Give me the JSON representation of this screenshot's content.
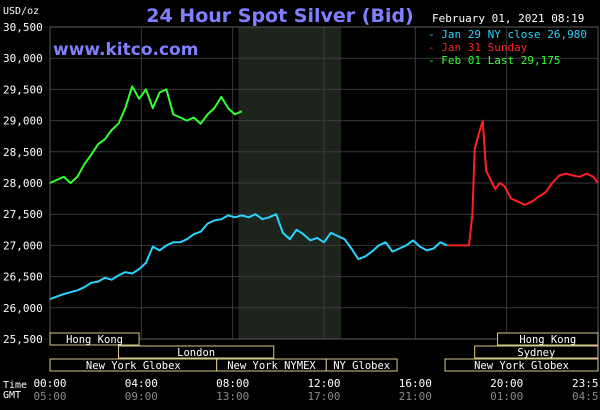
{
  "chart_data": {
    "type": "line",
    "title": "24 Hour Spot Silver (Bid)",
    "unit_label": "USD/oz",
    "watermark": "www.kitco.com",
    "timestamp": "February 01, 2021 08:19",
    "time_zone_label": "Time\nGMT",
    "ylim": [
      25.5,
      30.5
    ],
    "ytick_labels": [
      "25,500",
      "26,000",
      "26,500",
      "27,000",
      "27,500",
      "28,000",
      "28,500",
      "29,000",
      "29,500",
      "30,000",
      "30,500"
    ],
    "ytick_values": [
      25.5,
      26.0,
      26.5,
      27.0,
      27.5,
      28.0,
      28.5,
      29.0,
      29.5,
      30.0,
      30.5
    ],
    "xlim": [
      0,
      24
    ],
    "xticks": [
      {
        "x": 0,
        "top": "00:00",
        "bottom": "05:00"
      },
      {
        "x": 4,
        "top": "04:00",
        "bottom": "09:00"
      },
      {
        "x": 8,
        "top": "08:00",
        "bottom": "13:00"
      },
      {
        "x": 12,
        "top": "12:00",
        "bottom": "17:00"
      },
      {
        "x": 16,
        "top": "16:00",
        "bottom": "21:00"
      },
      {
        "x": 20,
        "top": "20:00",
        "bottom": "01:00"
      },
      {
        "x": 24,
        "top": "23:5",
        "bottom": "04:5"
      }
    ],
    "shaded_region": [
      8.25,
      12.75
    ],
    "legend": [
      {
        "label": "Jan 29 NY close 26,980",
        "color": "#2ad4ff"
      },
      {
        "label": "Jan 31 Sunday",
        "color": "#ff2020"
      },
      {
        "label": "Feb 01 Last 29,175",
        "color": "#33ff33"
      }
    ],
    "sessions": [
      {
        "name": "Hong Kong",
        "start": 0,
        "end": 3.9,
        "row": 0
      },
      {
        "name": "Hong Kong",
        "start": 19.6,
        "end": 24,
        "row": 0
      },
      {
        "name": "London",
        "start": 3,
        "end": 9.8,
        "row": 1
      },
      {
        "name": "Sydney",
        "start": 18.6,
        "end": 24,
        "row": 1
      },
      {
        "name": "New York Globex",
        "start": 0,
        "end": 7.3,
        "row": 2
      },
      {
        "name": "New York NYMEX",
        "start": 7.3,
        "end": 12.1,
        "row": 2
      },
      {
        "name": "NY Globex",
        "start": 12.1,
        "end": 15.2,
        "row": 2
      },
      {
        "name": "New York Globex",
        "start": 17.3,
        "end": 24,
        "row": 2
      }
    ],
    "series": [
      {
        "name": "Jan 29 NY close 26,980",
        "color": "#2ad4ff",
        "x": [
          0,
          0.3,
          0.6,
          0.9,
          1.2,
          1.5,
          1.8,
          2.1,
          2.4,
          2.7,
          3.0,
          3.3,
          3.6,
          3.9,
          4.2,
          4.5,
          4.8,
          5.1,
          5.4,
          5.7,
          6.0,
          6.3,
          6.6,
          6.9,
          7.2,
          7.5,
          7.8,
          8.1,
          8.4,
          8.7,
          9.0,
          9.3,
          9.6,
          9.9,
          10.2,
          10.5,
          10.8,
          11.1,
          11.4,
          11.7,
          12.0,
          12.3,
          12.6,
          12.9,
          13.2,
          13.5,
          13.8,
          14.1,
          14.4,
          14.7,
          15.0,
          15.3,
          15.6,
          15.9,
          16.2,
          16.5,
          16.8,
          17.1,
          17.4
        ],
        "y": [
          26.14,
          26.18,
          26.22,
          26.25,
          26.28,
          26.33,
          26.4,
          26.42,
          26.48,
          26.45,
          26.52,
          26.57,
          26.55,
          26.62,
          26.72,
          26.98,
          26.92,
          27.0,
          27.05,
          27.05,
          27.1,
          27.18,
          27.22,
          27.35,
          27.4,
          27.42,
          27.48,
          27.45,
          27.48,
          27.45,
          27.5,
          27.42,
          27.45,
          27.5,
          27.2,
          27.1,
          27.25,
          27.18,
          27.08,
          27.12,
          27.05,
          27.2,
          27.15,
          27.1,
          26.95,
          26.78,
          26.82,
          26.9,
          27.0,
          27.05,
          26.9,
          26.95,
          27.0,
          27.08,
          26.98,
          26.92,
          26.95,
          27.05,
          27.0
        ]
      },
      {
        "name": "Jan 31 Sunday",
        "color": "#ff2020",
        "x": [
          17.4,
          18.0,
          18.35,
          18.5,
          18.6,
          18.75,
          18.95,
          19.1,
          19.3,
          19.5,
          19.7,
          19.9,
          20.2,
          20.5,
          20.8,
          21.1,
          21.4,
          21.7,
          22.0,
          22.3,
          22.6,
          22.9,
          23.2,
          23.5,
          23.8,
          24.0
        ],
        "y": [
          27.0,
          27.0,
          27.0,
          27.5,
          28.55,
          28.75,
          29.0,
          28.2,
          28.05,
          27.9,
          28.0,
          27.95,
          27.75,
          27.7,
          27.65,
          27.7,
          27.78,
          27.85,
          28.0,
          28.12,
          28.15,
          28.12,
          28.1,
          28.15,
          28.1,
          28.0
        ]
      },
      {
        "name": "Feb 01 Last 29,175",
        "color": "#33ff33",
        "x": [
          0,
          0.3,
          0.6,
          0.9,
          1.2,
          1.5,
          1.8,
          2.1,
          2.4,
          2.7,
          3.0,
          3.3,
          3.6,
          3.9,
          4.2,
          4.5,
          4.8,
          5.1,
          5.4,
          5.7,
          6.0,
          6.3,
          6.6,
          6.9,
          7.2,
          7.5,
          7.8,
          8.1,
          8.4
        ],
        "y": [
          28.0,
          28.05,
          28.1,
          28.0,
          28.1,
          28.3,
          28.45,
          28.62,
          28.7,
          28.85,
          28.95,
          29.2,
          29.55,
          29.35,
          29.5,
          29.2,
          29.45,
          29.5,
          29.1,
          29.05,
          29.0,
          29.05,
          28.95,
          29.1,
          29.2,
          29.38,
          29.2,
          29.1,
          29.15
        ]
      }
    ]
  }
}
